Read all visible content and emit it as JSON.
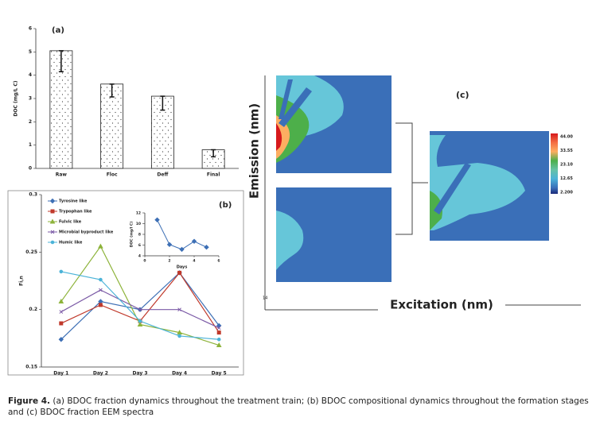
{
  "chart_data": [
    {
      "type": "bar",
      "title": "(a)",
      "y_label": "DOC (mg/L C)",
      "categories": [
        "Raw",
        "Floc",
        "Deff",
        "Final"
      ],
      "values": [
        5.05,
        3.62,
        3.1,
        0.8
      ],
      "errors": [
        0.9,
        0.55,
        0.6,
        0.3
      ],
      "color": "#ffffff",
      "ylim": [
        0,
        6
      ],
      "yticks": [
        0,
        1,
        2,
        3,
        4,
        5,
        6
      ]
    },
    {
      "type": "line",
      "title": "(b)",
      "y_label": "Fi,n",
      "categories": [
        "Day 1",
        "Day 2",
        "Day 3",
        "Day 4",
        "Day 5"
      ],
      "series": [
        {
          "name": "Tyrosine like",
          "color": "#3d6fb5",
          "values": [
            0.174,
            0.207,
            0.2,
            0.232,
            0.186
          ]
        },
        {
          "name": "Trypophan like",
          "color": "#c0392b",
          "values": [
            0.188,
            0.204,
            0.19,
            0.232,
            0.18
          ]
        },
        {
          "name": "Fulvic like",
          "color": "#8db33a",
          "values": [
            0.207,
            0.255,
            0.187,
            0.18,
            0.169
          ]
        },
        {
          "name": "Microbial byproduct like",
          "color": "#7b5aa6",
          "values": [
            0.198,
            0.217,
            0.2,
            0.2,
            0.184
          ]
        },
        {
          "name": "Humic like",
          "color": "#4bb3d8",
          "values": [
            0.233,
            0.226,
            0.19,
            0.177,
            0.174
          ]
        }
      ],
      "ylim": [
        0.15,
        0.3
      ],
      "yticks": [
        0.15,
        0.2,
        0.25,
        0.3
      ]
    },
    {
      "type": "line",
      "x_label": "Days",
      "y_label": "DOC (mg/l C)",
      "x": [
        1,
        2,
        3,
        4,
        5
      ],
      "values": [
        10.7,
        6.1,
        5.2,
        6.7,
        5.6
      ],
      "color": "#3d6fb5",
      "xlim": [
        0,
        6
      ],
      "xticks": [
        0,
        2,
        4,
        6
      ],
      "ylim": [
        4,
        12
      ],
      "yticks": [
        4,
        6,
        8,
        10,
        12
      ]
    }
  ],
  "panel_c": {
    "label": "(c)",
    "y_label": "Emission (nm)",
    "x_label": "Excitation (nm)",
    "corner_number": "14",
    "colorbar_labels": [
      "44.00",
      "33.55",
      "23.10",
      "12.65",
      "2.200"
    ]
  },
  "caption": {
    "label": "Figure 4.",
    "text": "(a) BDOC fraction dynamics throughout the treatment train; (b) BDOC compositional dynamics throughout the formation stages and (c) BDOC fraction EEM spectra"
  }
}
